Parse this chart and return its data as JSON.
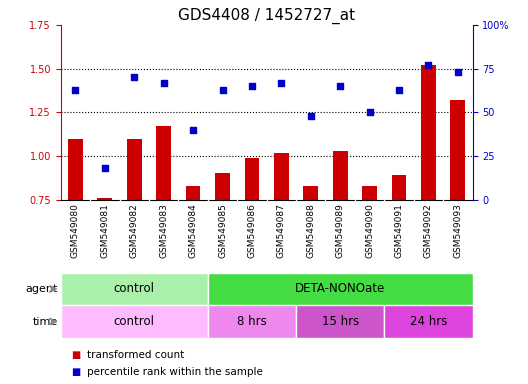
{
  "title": "GDS4408 / 1452727_at",
  "samples": [
    "GSM549080",
    "GSM549081",
    "GSM549082",
    "GSM549083",
    "GSM549084",
    "GSM549085",
    "GSM549086",
    "GSM549087",
    "GSM549088",
    "GSM549089",
    "GSM549090",
    "GSM549091",
    "GSM549092",
    "GSM549093"
  ],
  "bar_values": [
    1.1,
    0.76,
    1.1,
    1.17,
    0.83,
    0.9,
    0.99,
    1.02,
    0.83,
    1.03,
    0.83,
    0.89,
    1.52,
    1.32
  ],
  "scatter_values": [
    63,
    18,
    70,
    67,
    40,
    63,
    65,
    67,
    48,
    65,
    50,
    63,
    77,
    73
  ],
  "ylim_left": [
    0.75,
    1.75
  ],
  "ylim_right": [
    0,
    100
  ],
  "yticks_left": [
    0.75,
    1.0,
    1.25,
    1.5,
    1.75
  ],
  "yticks_right": [
    0,
    25,
    50,
    75,
    100
  ],
  "ytick_labels_right": [
    "0",
    "25",
    "50",
    "75",
    "100%"
  ],
  "hlines": [
    1.0,
    1.25,
    1.5
  ],
  "bar_color": "#cc0000",
  "scatter_color": "#0000cc",
  "agent_groups": [
    {
      "label": "control",
      "start": 0,
      "end": 5,
      "color": "#aaf0aa"
    },
    {
      "label": "DETA-NONOate",
      "start": 5,
      "end": 14,
      "color": "#44dd44"
    }
  ],
  "time_groups": [
    {
      "label": "control",
      "start": 0,
      "end": 5,
      "color": "#ffbbff"
    },
    {
      "label": "8 hrs",
      "start": 5,
      "end": 8,
      "color": "#ee88ee"
    },
    {
      "label": "15 hrs",
      "start": 8,
      "end": 11,
      "color": "#cc55cc"
    },
    {
      "label": "24 hrs",
      "start": 11,
      "end": 14,
      "color": "#dd44dd"
    }
  ],
  "legend_items": [
    {
      "label": "transformed count",
      "color": "#cc0000"
    },
    {
      "label": "percentile rank within the sample",
      "color": "#0000cc"
    }
  ],
  "agent_label": "agent",
  "time_label": "time",
  "title_fontsize": 11,
  "tick_fontsize": 7,
  "label_fontsize": 8.5,
  "sample_fontsize": 6.5,
  "row_label_fontsize": 8,
  "legend_fontsize": 7.5,
  "sample_bg_color": "#d8d8d8",
  "plot_bg_color": "#ffffff",
  "border_color": "#000000"
}
